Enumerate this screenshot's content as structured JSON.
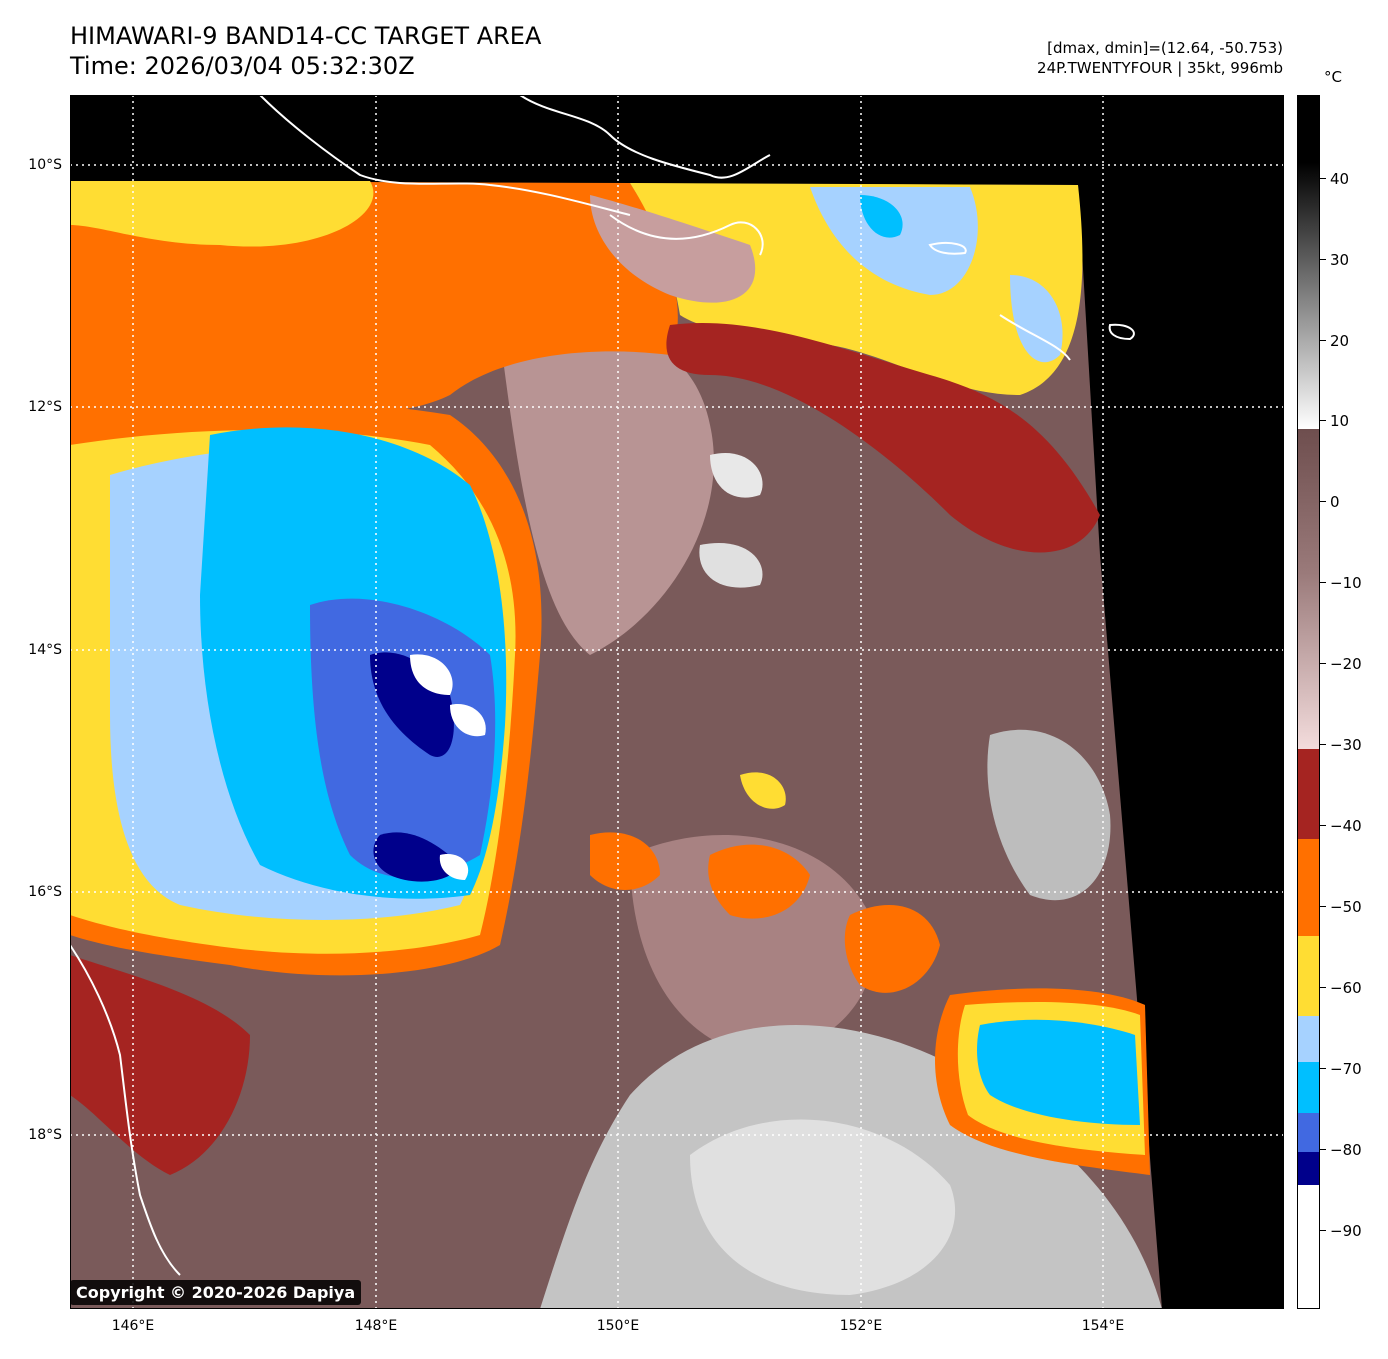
{
  "header": {
    "title": "HIMAWARI-9 BAND14-CC TARGET AREA",
    "time": "Time: 2026/03/04 05:32:30Z",
    "range": "[dmax, dmin]=(12.64, -50.753)",
    "storm": "24P.TWENTYFOUR | 35kt, 996mb"
  },
  "map": {
    "lat_labels": [
      "10°S",
      "12°S",
      "14°S",
      "16°S",
      "18°S"
    ],
    "lon_labels": [
      "146°E",
      "148°E",
      "150°E",
      "152°E",
      "154°E"
    ],
    "copyright": "Copyright © 2020-2026 Dapiya"
  },
  "colorbar": {
    "unit": "°C",
    "ticks": [
      "40",
      "30",
      "20",
      "10",
      "0",
      "−10",
      "−20",
      "−30",
      "−40",
      "−50",
      "−60",
      "−70",
      "−80",
      "−90"
    ],
    "colors": {
      "warm_top": "#000000",
      "mid_gray": "#808080",
      "light": "#ffffff",
      "brown": "#6e4e4e",
      "pink": "#f3dcdc",
      "dark_red": "#a52421",
      "orange": "#ff7000",
      "yellow": "#ffdd33",
      "light_blue": "#a6d2ff",
      "cyan": "#00bfff",
      "royal_blue": "#4169e1",
      "navy": "#00008b",
      "white": "#ffffff"
    }
  }
}
